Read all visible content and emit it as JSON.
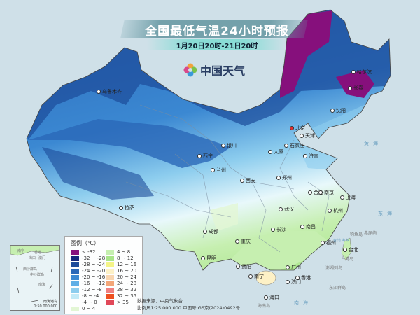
{
  "header": {
    "title": "全国最低气温24小时预报",
    "subtitle": "1月20日20时-21日20时"
  },
  "logo": {
    "text": "中国天气",
    "icon": "pinwheel-logo-icon"
  },
  "legend": {
    "title": "图例（℃）",
    "items": [
      {
        "label": "≤ -32",
        "color": "#86107c"
      },
      {
        "label": "-32 ~ -28",
        "color": "#13267a"
      },
      {
        "label": "-28 ~ -24",
        "color": "#1d4b9a"
      },
      {
        "label": "-24 ~ -20",
        "color": "#2a68b8"
      },
      {
        "label": "-20 ~ -16",
        "color": "#3b88d2"
      },
      {
        "label": "-16 ~ -12",
        "color": "#5eaee6"
      },
      {
        "label": "-12 ~ -8",
        "color": "#8dcdee"
      },
      {
        "label": "-8 ~ -4",
        "color": "#c2eaf7"
      },
      {
        "label": "-4 ~ 0",
        "color": "#f2fbfd"
      },
      {
        "label": "0 ~ 4",
        "color": "#e2f6d4"
      },
      {
        "label": "4 ~ 8",
        "color": "#c6efb0"
      },
      {
        "label": "8 ~ 12",
        "color": "#a9e58a"
      },
      {
        "label": "12 ~ 16",
        "color": "#f4f487"
      },
      {
        "label": "16 ~ 20",
        "color": "#fdf1c6"
      },
      {
        "label": "20 ~ 24",
        "color": "#f9d6b0"
      },
      {
        "label": "24 ~ 28",
        "color": "#f3a678"
      },
      {
        "label": "28 ~ 32",
        "color": "#ef8080"
      },
      {
        "label": "32 ~ 35",
        "color": "#ee5020"
      },
      {
        "label": "> 35",
        "color": "#e04858"
      }
    ]
  },
  "source": {
    "line1": "数据来源：中央气象台",
    "line2": "比例尺1:25 000 000    审图号:GS京(2024)0492号"
  },
  "inset": {
    "name": "南海诸岛",
    "scale": "1:50 000 000",
    "labels": [
      "南宁",
      "香港",
      "海口",
      "澳门",
      "西沙群岛",
      "中沙群岛",
      "南海"
    ]
  },
  "cities": [
    "乌鲁木齐",
    "拉萨",
    "西宁",
    "兰州",
    "银川",
    "成都",
    "重庆",
    "昆明",
    "贵阳",
    "南宁",
    "西安",
    "太原",
    "北京",
    "天津",
    "石家庄",
    "济南",
    "郑州",
    "合肥",
    "南京",
    "上海",
    "杭州",
    "武汉",
    "长沙",
    "南昌",
    "福州",
    "广州",
    "香港",
    "澳门",
    "海口",
    "台北",
    "沈阳",
    "长春",
    "哈尔滨"
  ],
  "seas": [
    "黄海",
    "东海",
    "南海",
    "台湾海峡"
  ],
  "islands": [
    "钓鱼岛",
    "赤尾屿",
    "台湾岛",
    "澎湖列岛",
    "东沙群岛",
    "海南岛"
  ]
}
